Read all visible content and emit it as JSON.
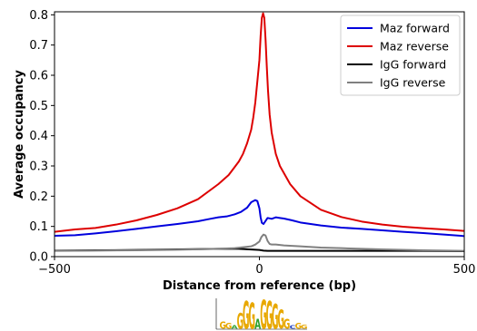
{
  "chart_data": {
    "type": "line",
    "title": "",
    "xlabel": "Distance from reference (bp)",
    "ylabel": "Average occupancy",
    "xlim": [
      -500,
      500
    ],
    "ylim": [
      0,
      0.81
    ],
    "xticks": [
      -500,
      0,
      500
    ],
    "yticks": [
      0.0,
      0.1,
      0.2,
      0.3,
      0.4,
      0.5,
      0.6,
      0.7,
      0.8
    ],
    "grid": false,
    "legend_position": "top-right",
    "series": [
      {
        "name": "Maz forward",
        "color": "#0000dd",
        "x": [
          -500,
          -450,
          -400,
          -350,
          -300,
          -250,
          -200,
          -150,
          -120,
          -100,
          -80,
          -60,
          -45,
          -30,
          -20,
          -10,
          -5,
          0,
          3,
          6,
          10,
          15,
          20,
          30,
          40,
          50,
          60,
          80,
          100,
          150,
          200,
          250,
          300,
          350,
          400,
          450,
          500
        ],
        "y": [
          0.069,
          0.071,
          0.077,
          0.084,
          0.092,
          0.1,
          0.108,
          0.117,
          0.125,
          0.13,
          0.133,
          0.14,
          0.148,
          0.162,
          0.18,
          0.187,
          0.184,
          0.16,
          0.13,
          0.112,
          0.108,
          0.118,
          0.128,
          0.125,
          0.13,
          0.128,
          0.126,
          0.12,
          0.113,
          0.103,
          0.096,
          0.092,
          0.087,
          0.082,
          0.078,
          0.073,
          0.068
        ]
      },
      {
        "name": "Maz reverse",
        "color": "#dd0000",
        "x": [
          -500,
          -450,
          -400,
          -350,
          -300,
          -250,
          -200,
          -150,
          -100,
          -75,
          -50,
          -40,
          -30,
          -20,
          -15,
          -10,
          -5,
          0,
          3,
          6,
          9,
          12,
          15,
          18,
          21,
          25,
          30,
          40,
          50,
          75,
          100,
          150,
          200,
          250,
          300,
          350,
          400,
          450,
          500
        ],
        "y": [
          0.082,
          0.09,
          0.095,
          0.106,
          0.12,
          0.138,
          0.16,
          0.19,
          0.24,
          0.27,
          0.315,
          0.34,
          0.375,
          0.42,
          0.46,
          0.51,
          0.58,
          0.65,
          0.73,
          0.79,
          0.805,
          0.79,
          0.72,
          0.63,
          0.55,
          0.47,
          0.41,
          0.34,
          0.3,
          0.24,
          0.2,
          0.155,
          0.131,
          0.116,
          0.106,
          0.099,
          0.094,
          0.09,
          0.085
        ]
      },
      {
        "name": "IgG forward",
        "color": "#000000",
        "x": [
          -500,
          -400,
          -300,
          -200,
          -100,
          -50,
          -25,
          0,
          10,
          20,
          50,
          100,
          200,
          300,
          400,
          500
        ],
        "y": [
          0.02,
          0.021,
          0.022,
          0.024,
          0.026,
          0.026,
          0.024,
          0.022,
          0.02,
          0.019,
          0.019,
          0.019,
          0.019,
          0.019,
          0.019,
          0.018
        ]
      },
      {
        "name": "IgG reverse",
        "color": "#808080",
        "x": [
          -500,
          -400,
          -300,
          -200,
          -100,
          -60,
          -40,
          -20,
          -10,
          0,
          5,
          10,
          15,
          20,
          25,
          30,
          40,
          60,
          100,
          150,
          200,
          300,
          400,
          500
        ],
        "y": [
          0.019,
          0.02,
          0.021,
          0.023,
          0.026,
          0.028,
          0.031,
          0.034,
          0.04,
          0.05,
          0.065,
          0.073,
          0.07,
          0.052,
          0.042,
          0.04,
          0.04,
          0.037,
          0.034,
          0.03,
          0.028,
          0.024,
          0.021,
          0.019
        ]
      }
    ],
    "motif_logo": {
      "letters": [
        {
          "char": "G",
          "color": "#e8a800",
          "h": 0.25
        },
        {
          "char": "G",
          "color": "#e8a800",
          "h": 0.2
        },
        {
          "char": "A",
          "color": "#2ca02c",
          "h": 0.12
        },
        {
          "char": "G",
          "color": "#e8a800",
          "h": 0.55
        },
        {
          "char": "G",
          "color": "#e8a800",
          "h": 0.95
        },
        {
          "char": "G",
          "color": "#e8a800",
          "h": 0.9
        },
        {
          "char": "A",
          "color": "#2ca02c",
          "h": 0.35
        },
        {
          "char": "G",
          "color": "#e8a800",
          "h": 1.0
        },
        {
          "char": "G",
          "color": "#e8a800",
          "h": 0.95
        },
        {
          "char": "G",
          "color": "#e8a800",
          "h": 0.85
        },
        {
          "char": "G",
          "color": "#e8a800",
          "h": 0.65
        },
        {
          "char": "G",
          "color": "#e8a800",
          "h": 0.35
        },
        {
          "char": "C",
          "color": "#1f3fbf",
          "h": 0.12
        },
        {
          "char": "G",
          "color": "#e8a800",
          "h": 0.2
        },
        {
          "char": "G",
          "color": "#e8a800",
          "h": 0.15
        }
      ]
    }
  }
}
